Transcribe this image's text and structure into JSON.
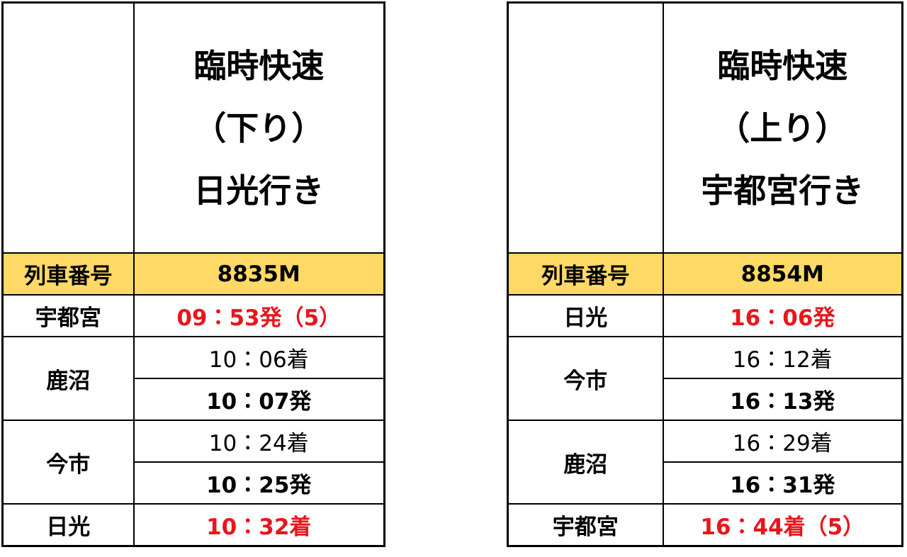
{
  "tables": [
    {
      "title": [
        "臨時快速",
        "（下り）",
        "日光行き"
      ],
      "train_number_label": "列車番号",
      "train_number": "8835M",
      "stops": [
        {
          "station": "宇都宮",
          "times": [
            "09：53発（5）"
          ]
        },
        {
          "station": "鹿沼",
          "times": [
            "10：06着",
            "10：07発"
          ]
        },
        {
          "station": "今市",
          "times": [
            "10：24着",
            "10：25発"
          ]
        },
        {
          "station": "日光",
          "times": [
            "10：32着"
          ]
        }
      ]
    },
    {
      "title": [
        "臨時快速",
        "（上り）",
        "宇都宮行き"
      ],
      "train_number_label": "列車番号",
      "train_number": "8854M",
      "stops": [
        {
          "station": "日光",
          "times": [
            "16：06発"
          ]
        },
        {
          "station": "今市",
          "times": [
            "16：12着",
            "16：13発"
          ]
        },
        {
          "station": "鹿沼",
          "times": [
            "16：29着",
            "16：31発"
          ]
        },
        {
          "station": "宇都宮",
          "times": [
            "16：44着（5）"
          ]
        }
      ]
    }
  ]
}
